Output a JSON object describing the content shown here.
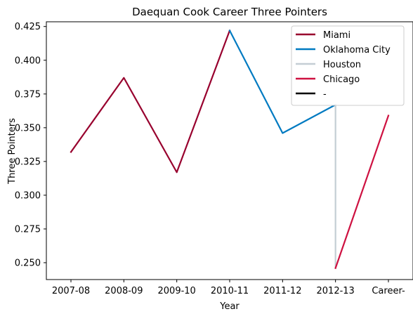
{
  "chart_data": {
    "type": "line",
    "title": "Daequan Cook Career Three Pointers",
    "xlabel": "Year",
    "ylabel": "Three Pointers",
    "categories": [
      "2007-08",
      "2008-09",
      "2009-10",
      "2010-11",
      "2011-12",
      "2012-13",
      "Career-"
    ],
    "ylim": [
      0.2375,
      0.4285
    ],
    "yticks": [
      0.25,
      0.275,
      0.3,
      0.325,
      0.35,
      0.375,
      0.4,
      0.425
    ],
    "ytick_labels": [
      "0.250",
      "0.275",
      "0.300",
      "0.325",
      "0.350",
      "0.375",
      "0.400",
      "0.425"
    ],
    "grid": false,
    "legend_position": "top-right",
    "series": [
      {
        "name": "Miami",
        "color": "#98002e",
        "points": [
          {
            "x": "2007-08",
            "y": 0.332
          },
          {
            "x": "2008-09",
            "y": 0.387
          },
          {
            "x": "2009-10",
            "y": 0.317
          },
          {
            "x": "2010-11",
            "y": 0.422
          }
        ]
      },
      {
        "name": "Oklahoma City",
        "color": "#007ac1",
        "points": [
          {
            "x": "2010-11",
            "y": 0.422
          },
          {
            "x": "2011-12",
            "y": 0.346
          },
          {
            "x": "2012-13",
            "y": 0.367
          }
        ]
      },
      {
        "name": "Houston",
        "color": "#c4ced4",
        "points": [
          {
            "x": "2012-13",
            "y": 0.367
          },
          {
            "x": "2012-13",
            "y": 0.246
          }
        ]
      },
      {
        "name": "Chicago",
        "color": "#ce1141",
        "points": [
          {
            "x": "2012-13",
            "y": 0.246
          },
          {
            "x": "Career-",
            "y": 0.359
          }
        ]
      },
      {
        "name": "-",
        "color": "#000000",
        "points": []
      }
    ]
  }
}
